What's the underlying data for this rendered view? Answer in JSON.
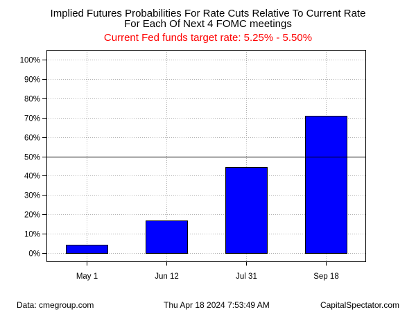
{
  "chart_data": {
    "type": "bar",
    "title_lines": [
      "Implied Futures Probabilities For Rate Cuts Relative To Current Rate",
      "For Each Of Next 4 FOMC meetings"
    ],
    "subtitle": "Current Fed funds target rate: 5.25% - 5.50%",
    "categories": [
      "May 1",
      "Jun 12",
      "Jul 31",
      "Sep 18"
    ],
    "values": [
      4.3,
      16.8,
      44.3,
      70.9
    ],
    "ylim": [
      0,
      100
    ],
    "yticks": [
      0,
      10,
      20,
      30,
      40,
      50,
      60,
      70,
      80,
      90,
      100
    ],
    "ytick_labels": [
      "0%",
      "10%",
      "20%",
      "30%",
      "40%",
      "50%",
      "60%",
      "70%",
      "80%",
      "90%",
      "100%"
    ],
    "reference_line": 50,
    "grid": true,
    "bar_color": "#0000ff",
    "subtitle_color": "#ff0000"
  },
  "footer": {
    "source": "Data: cmegroup.com",
    "timestamp": "Thu Apr 18 2024 7:53:49 AM",
    "brand": "CapitalSpectator.com"
  }
}
